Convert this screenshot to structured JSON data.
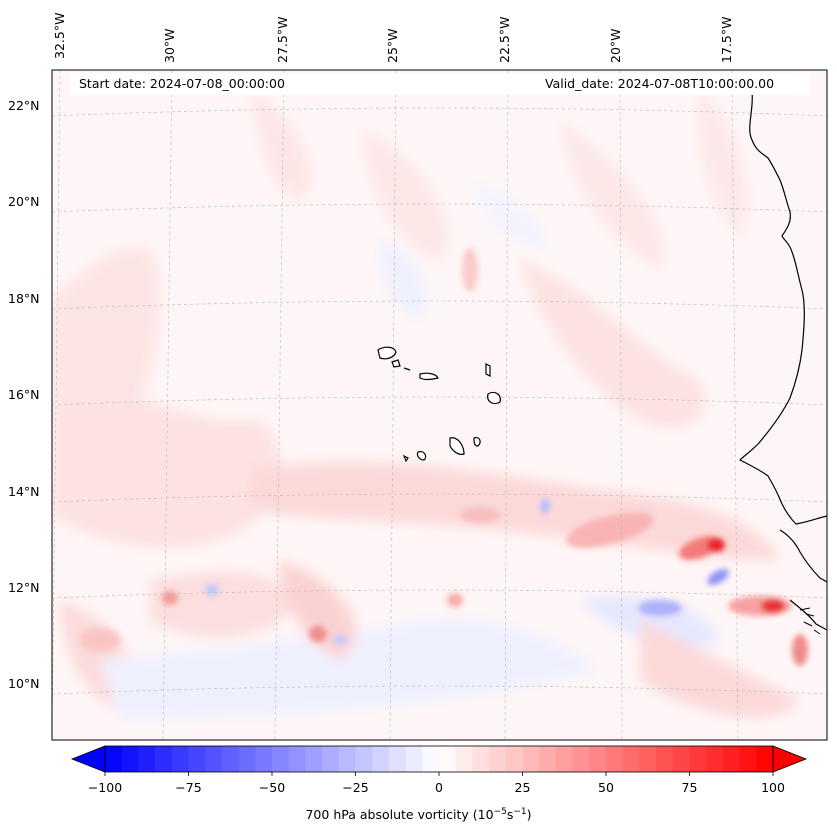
{
  "map": {
    "start_date": "Start date: 2024-07-08_00:00:00",
    "valid_date": "Valid_date: 2024-07-08T10:00:00.00",
    "lon_labels": [
      "32.5°W",
      "30°W",
      "27.5°W",
      "25°W",
      "22.5°W",
      "20°W",
      "17.5°W"
    ],
    "lat_labels": [
      "22°N",
      "20°N",
      "18°N",
      "16°N",
      "14°N",
      "12°N",
      "10°N"
    ],
    "features": [
      "Cabo Verde islands",
      "West African coastline"
    ]
  },
  "colorbar": {
    "ticks": [
      "−100",
      "−75",
      "−50",
      "−25",
      "0",
      "25",
      "50",
      "75",
      "100"
    ],
    "title": "700 hPa absolute vorticity (10",
    "title_exp1": "−5",
    "title_mid": "s",
    "title_exp2": "−1",
    "title_end": ")",
    "min_color": "#0000ff",
    "mid_color": "#ffffff",
    "max_color": "#ff0000"
  }
}
